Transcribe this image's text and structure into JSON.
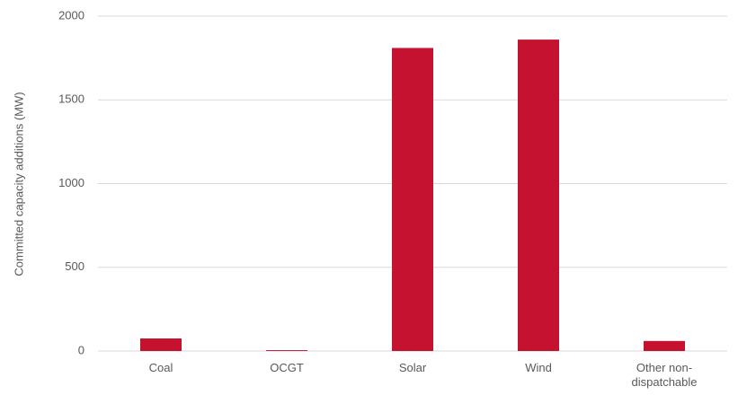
{
  "chart_data": {
    "type": "bar",
    "y_label": "Committed capacity additions (MW)",
    "categories": [
      "Coal",
      "OCGT",
      "Solar",
      "Wind",
      "Other non-dispatchable"
    ],
    "values": [
      75,
      5,
      1810,
      1860,
      60
    ],
    "color": "#c41230",
    "ylim": [
      0,
      2000
    ],
    "yticks": [
      0,
      500,
      1000,
      1500,
      2000
    ],
    "grid": true
  }
}
